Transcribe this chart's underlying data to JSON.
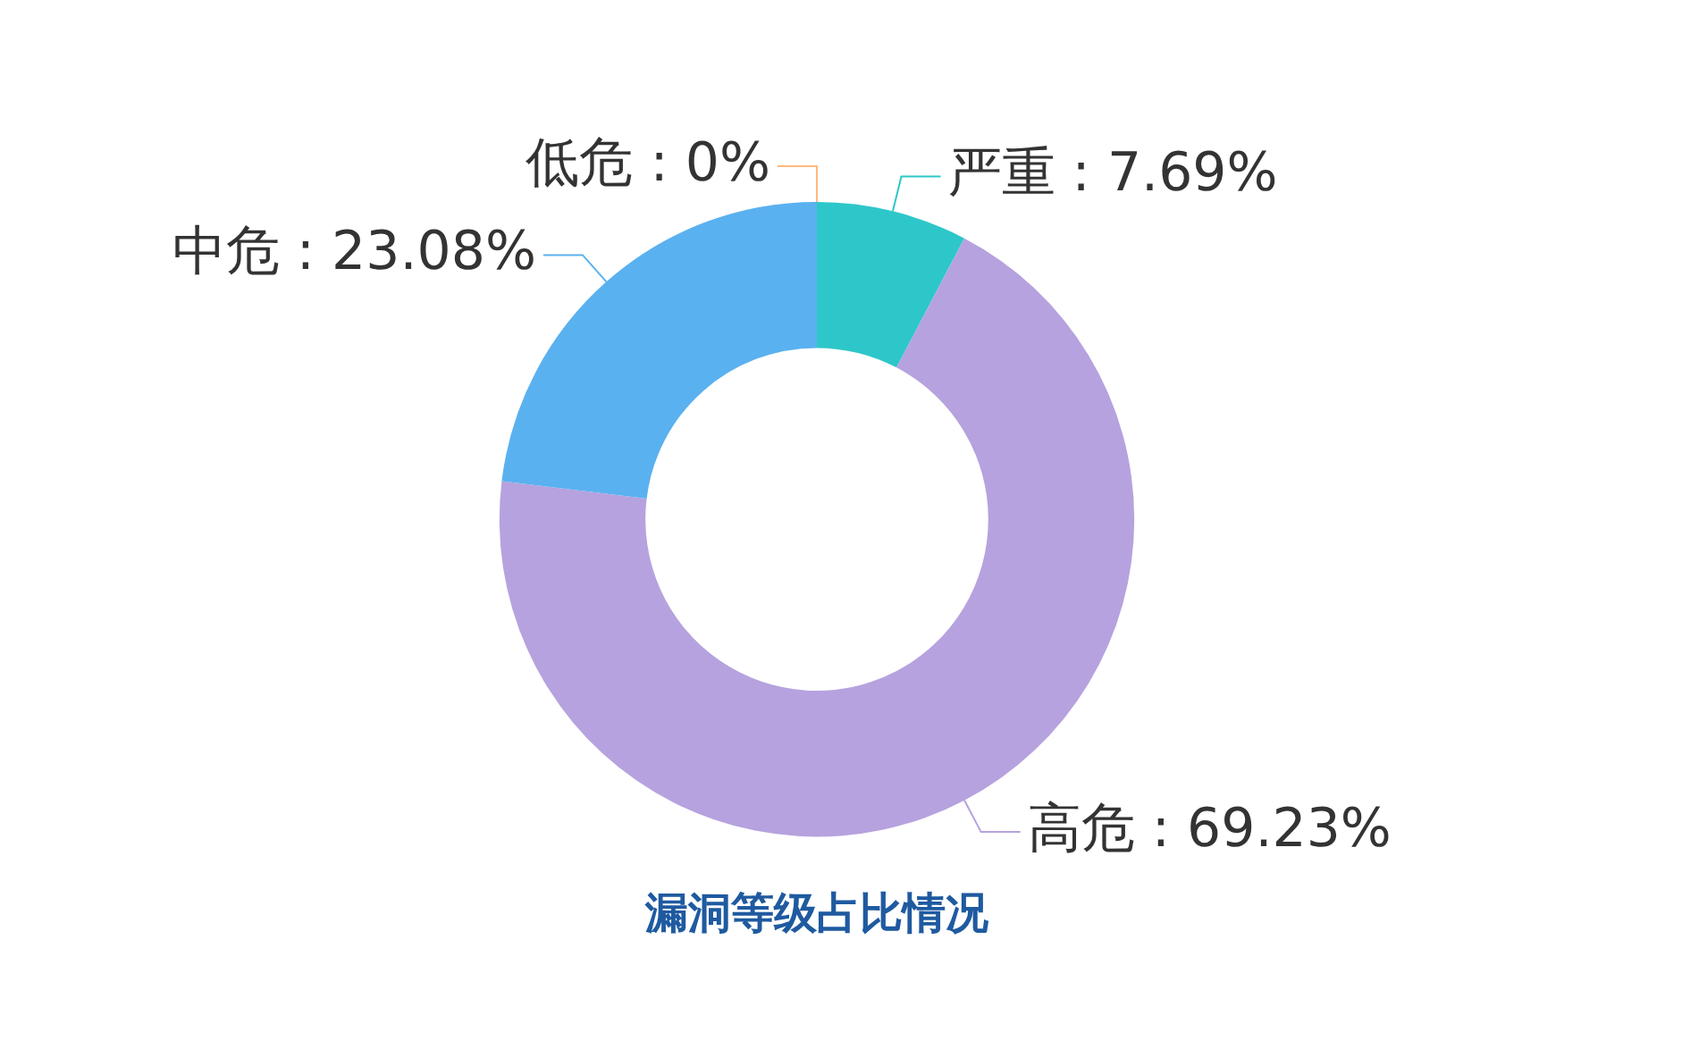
{
  "chart_data": {
    "type": "donut",
    "title": "漏洞等级占比情况",
    "categories": [
      "严重",
      "高危",
      "中危",
      "低危"
    ],
    "values": [
      7.69,
      69.23,
      23.08,
      0
    ],
    "value_labels": [
      "7.69%",
      "69.23%",
      "23.08%",
      "0%"
    ],
    "colors": [
      "#2ec7c9",
      "#b6a2de",
      "#5ab1ef",
      "#ffb980"
    ]
  }
}
